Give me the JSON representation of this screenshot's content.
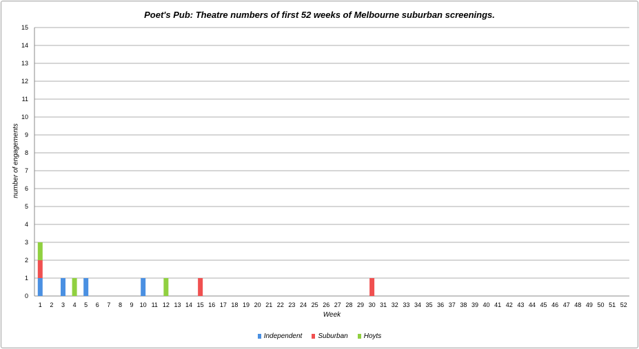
{
  "chart_data": {
    "type": "bar",
    "stacked": true,
    "title": "Poet's Pub: Theatre numbers of first 52 weeks of Melbourne suburban screenings.",
    "xlabel": "Week",
    "ylabel": "number of engagements",
    "ylim": [
      0,
      15
    ],
    "yticks": [
      0,
      1,
      2,
      3,
      4,
      5,
      6,
      7,
      8,
      9,
      10,
      11,
      12,
      13,
      14,
      15
    ],
    "grid": true,
    "legend_position": "bottom",
    "categories": [
      1,
      2,
      3,
      4,
      5,
      6,
      7,
      8,
      9,
      10,
      11,
      12,
      13,
      14,
      15,
      16,
      17,
      18,
      19,
      20,
      21,
      22,
      23,
      24,
      25,
      26,
      27,
      28,
      29,
      30,
      31,
      32,
      33,
      34,
      35,
      36,
      37,
      38,
      39,
      40,
      41,
      42,
      43,
      44,
      45,
      46,
      47,
      48,
      49,
      50,
      51,
      52
    ],
    "series": [
      {
        "name": "Independent",
        "color": "#4a90e2",
        "values": [
          1,
          0,
          1,
          0,
          1,
          0,
          0,
          0,
          0,
          1,
          0,
          0,
          0,
          0,
          0,
          0,
          0,
          0,
          0,
          0,
          0,
          0,
          0,
          0,
          0,
          0,
          0,
          0,
          0,
          0,
          0,
          0,
          0,
          0,
          0,
          0,
          0,
          0,
          0,
          0,
          0,
          0,
          0,
          0,
          0,
          0,
          0,
          0,
          0,
          0,
          0,
          0
        ]
      },
      {
        "name": "Suburban",
        "color": "#f05050",
        "values": [
          1,
          0,
          0,
          0,
          0,
          0,
          0,
          0,
          0,
          0,
          0,
          0,
          0,
          0,
          1,
          0,
          0,
          0,
          0,
          0,
          0,
          0,
          0,
          0,
          0,
          0,
          0,
          0,
          0,
          1,
          0,
          0,
          0,
          0,
          0,
          0,
          0,
          0,
          0,
          0,
          0,
          0,
          0,
          0,
          0,
          0,
          0,
          0,
          0,
          0,
          0,
          0
        ]
      },
      {
        "name": "Hoyts",
        "color": "#90d040",
        "values": [
          1,
          0,
          0,
          1,
          0,
          0,
          0,
          0,
          0,
          0,
          0,
          1,
          0,
          0,
          0,
          0,
          0,
          0,
          0,
          0,
          0,
          0,
          0,
          0,
          0,
          0,
          0,
          0,
          0,
          0,
          0,
          0,
          0,
          0,
          0,
          0,
          0,
          0,
          0,
          0,
          0,
          0,
          0,
          0,
          0,
          0,
          0,
          0,
          0,
          0,
          0,
          0
        ]
      }
    ]
  }
}
